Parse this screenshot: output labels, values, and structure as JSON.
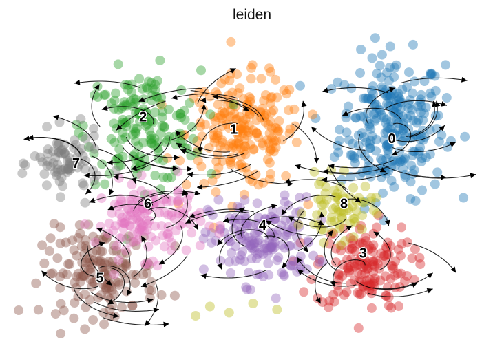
{
  "title": "leiden",
  "chart_data": {
    "type": "scatter",
    "title": "leiden",
    "xlabel": "",
    "ylabel": "",
    "legend": "on data",
    "grid": false,
    "axes_visible": false,
    "xlim": [
      0,
      100
    ],
    "ylim": [
      0,
      100
    ],
    "overlay": "velocity stream arrows (black)",
    "series": [
      {
        "name": "0",
        "color": "#1f77b4",
        "center": [
          79,
          69
        ],
        "spread": [
          11,
          23
        ],
        "n": 260
      },
      {
        "name": "1",
        "color": "#ff7f0e",
        "center": [
          48,
          67
        ],
        "spread": [
          12,
          18
        ],
        "n": 210
      },
      {
        "name": "2",
        "color": "#2ca02c",
        "center": [
          27,
          69
        ],
        "spread": [
          12,
          18
        ],
        "n": 170
      },
      {
        "name": "3",
        "color": "#d62728",
        "center": [
          73,
          24
        ],
        "spread": [
          10,
          14
        ],
        "n": 150
      },
      {
        "name": "4",
        "color": "#9467bd",
        "center": [
          52,
          32
        ],
        "spread": [
          11,
          14
        ],
        "n": 160
      },
      {
        "name": "5",
        "color": "#8c564b",
        "center": [
          18,
          22
        ],
        "spread": [
          12,
          14
        ],
        "n": 160
      },
      {
        "name": "6",
        "color": "#e377c2",
        "center": [
          28,
          39
        ],
        "spread": [
          11,
          12
        ],
        "n": 140
      },
      {
        "name": "7",
        "color": "#7f7f7f",
        "center": [
          11,
          57
        ],
        "spread": [
          7,
          10
        ],
        "n": 80
      },
      {
        "name": "8",
        "color": "#bcbd22",
        "center": [
          68,
          42
        ],
        "spread": [
          7,
          10
        ],
        "n": 70
      }
    ],
    "label_positions": {
      "0": [
        79,
        65
      ],
      "1": [
        46,
        68
      ],
      "2": [
        27,
        72
      ],
      "3": [
        73,
        28
      ],
      "4": [
        52,
        37
      ],
      "5": [
        18,
        20
      ],
      "6": [
        28,
        44
      ],
      "7": [
        13,
        57
      ],
      "8": [
        69,
        44
      ]
    },
    "stray_points": [
      {
        "name": "8",
        "points": [
          [
            41,
            11
          ],
          [
            45,
            9
          ],
          [
            50,
            12
          ],
          [
            55,
            10
          ],
          [
            38,
            8
          ]
        ]
      }
    ]
  }
}
